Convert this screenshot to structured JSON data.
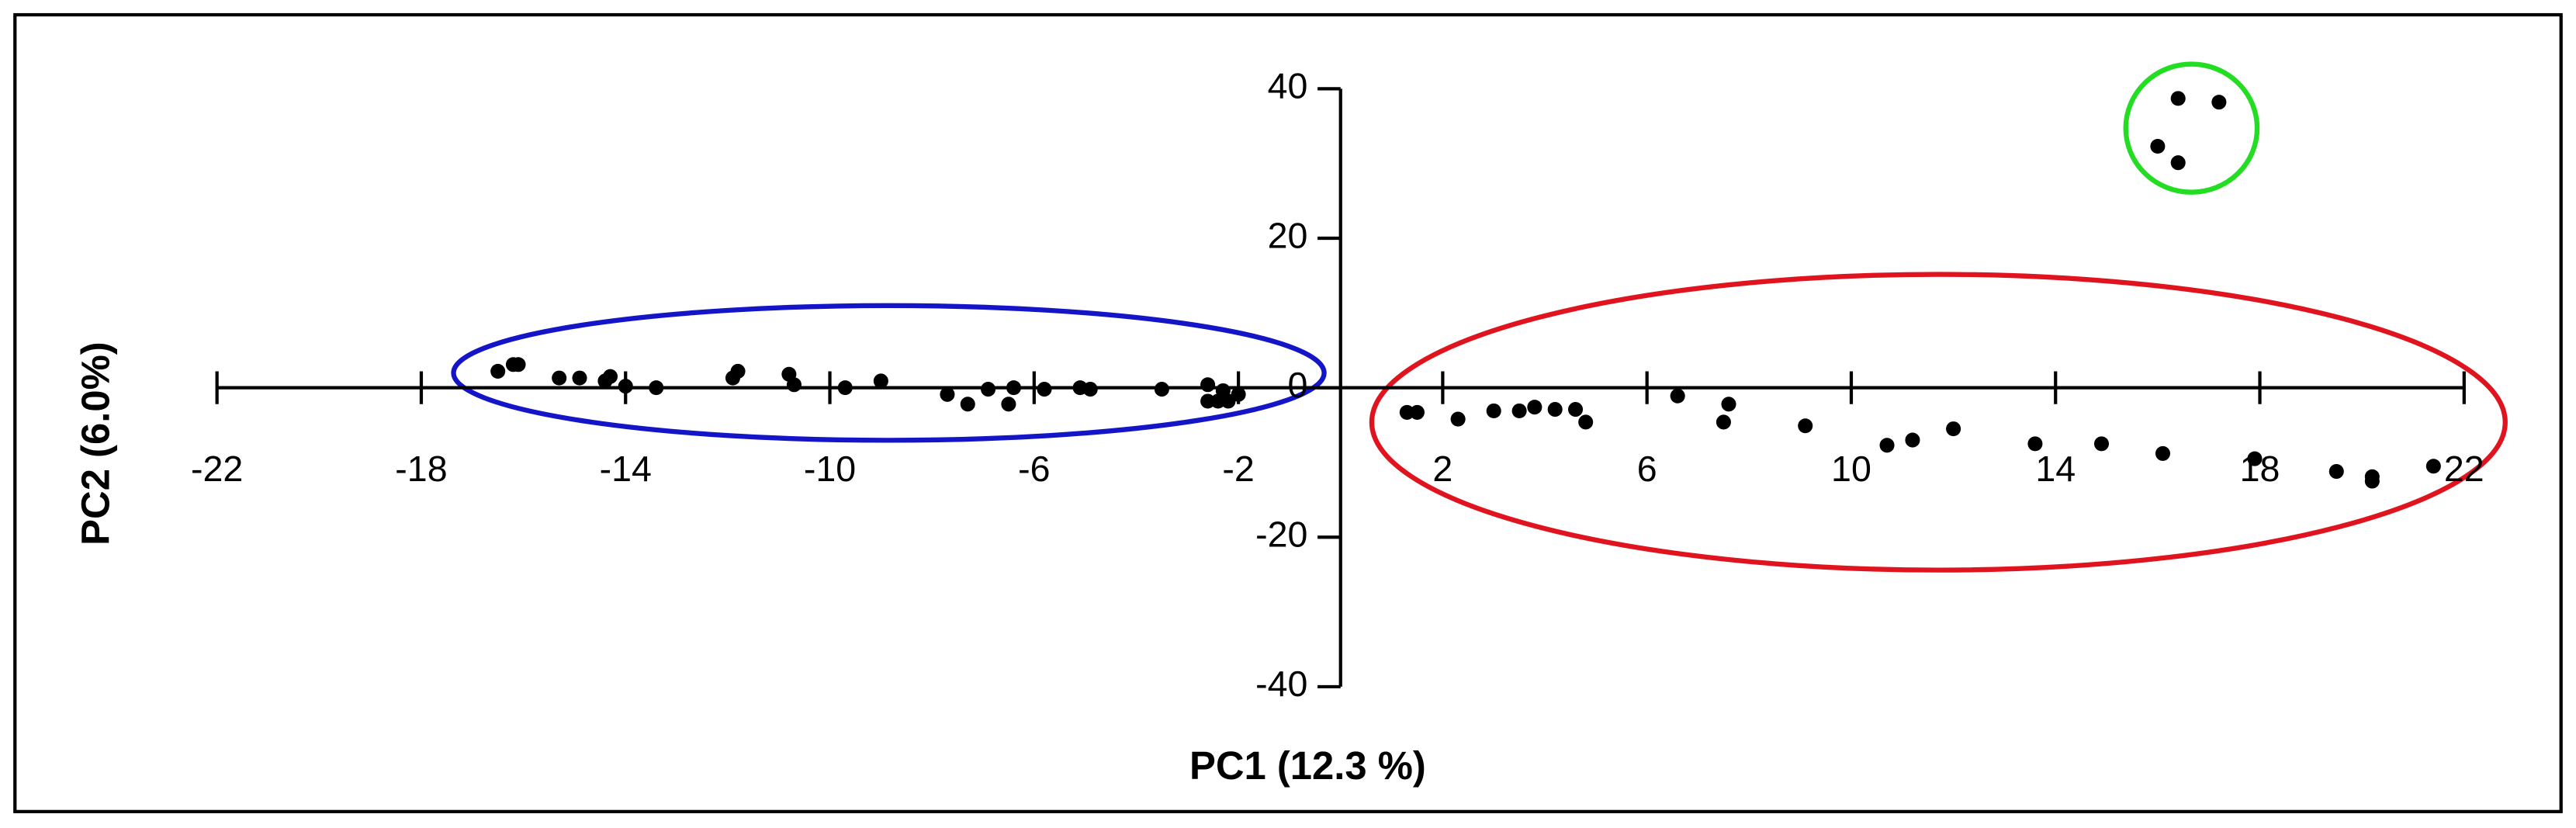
{
  "chart_data": {
    "type": "scatter",
    "x_label": "PC1 (12.3 %)",
    "y_label": "PC2  (6.0%)",
    "xlim": [
      -22,
      22
    ],
    "ylim": [
      -40,
      40
    ],
    "xticks": [
      -22,
      -18,
      -14,
      -10,
      -6,
      -2,
      2,
      6,
      10,
      14,
      18,
      22
    ],
    "yticks": [
      40,
      20,
      0,
      -20,
      -40
    ],
    "series": [
      {
        "color": "#000000",
        "x": [
          -16.5,
          -16.2,
          -16.1,
          -15.3,
          -14.9,
          -14.4,
          -14.3,
          -14.0,
          -13.4,
          -11.9,
          -11.8,
          -10.8,
          -10.7,
          -9.7,
          -9.0,
          -7.7,
          -7.3,
          -6.9,
          -6.5,
          -6.4,
          -5.8,
          -5.1,
          -4.9,
          -3.5,
          -2.6,
          -2.6,
          -2.4,
          -2.3,
          -2.2,
          -2.0,
          1.3,
          1.5,
          2.3,
          3.0,
          3.5,
          3.8,
          4.2,
          4.6,
          4.8,
          6.6,
          7.5,
          7.6,
          9.1,
          10.7,
          11.2,
          12.0,
          13.6,
          14.9,
          16.1,
          17.9,
          19.5,
          20.2,
          20.2,
          21.4,
          16.0,
          16.4,
          16.4,
          17.2
        ],
        "y": [
          2.2,
          3.1,
          3.1,
          1.3,
          1.3,
          0.9,
          1.5,
          0.2,
          0,
          1.3,
          2.2,
          1.8,
          0.4,
          0,
          0.9,
          -0.9,
          -2.2,
          -0.2,
          -2.2,
          0,
          -0.2,
          0,
          -0.2,
          -0.2,
          0.4,
          -1.8,
          -1.8,
          -0.4,
          -1.8,
          -0.9,
          -3.3,
          -3.3,
          -4.2,
          -3.1,
          -3.1,
          -2.6,
          -2.9,
          -2.9,
          -4.6,
          -1.1,
          -4.6,
          -2.2,
          -5.1,
          -7.7,
          -7.0,
          -5.5,
          -7.5,
          -7.5,
          -8.8,
          -9.5,
          -11.2,
          -11.9,
          -12.5,
          -10.5,
          32.3,
          38.7,
          30.1,
          38.2
        ]
      }
    ]
  }
}
